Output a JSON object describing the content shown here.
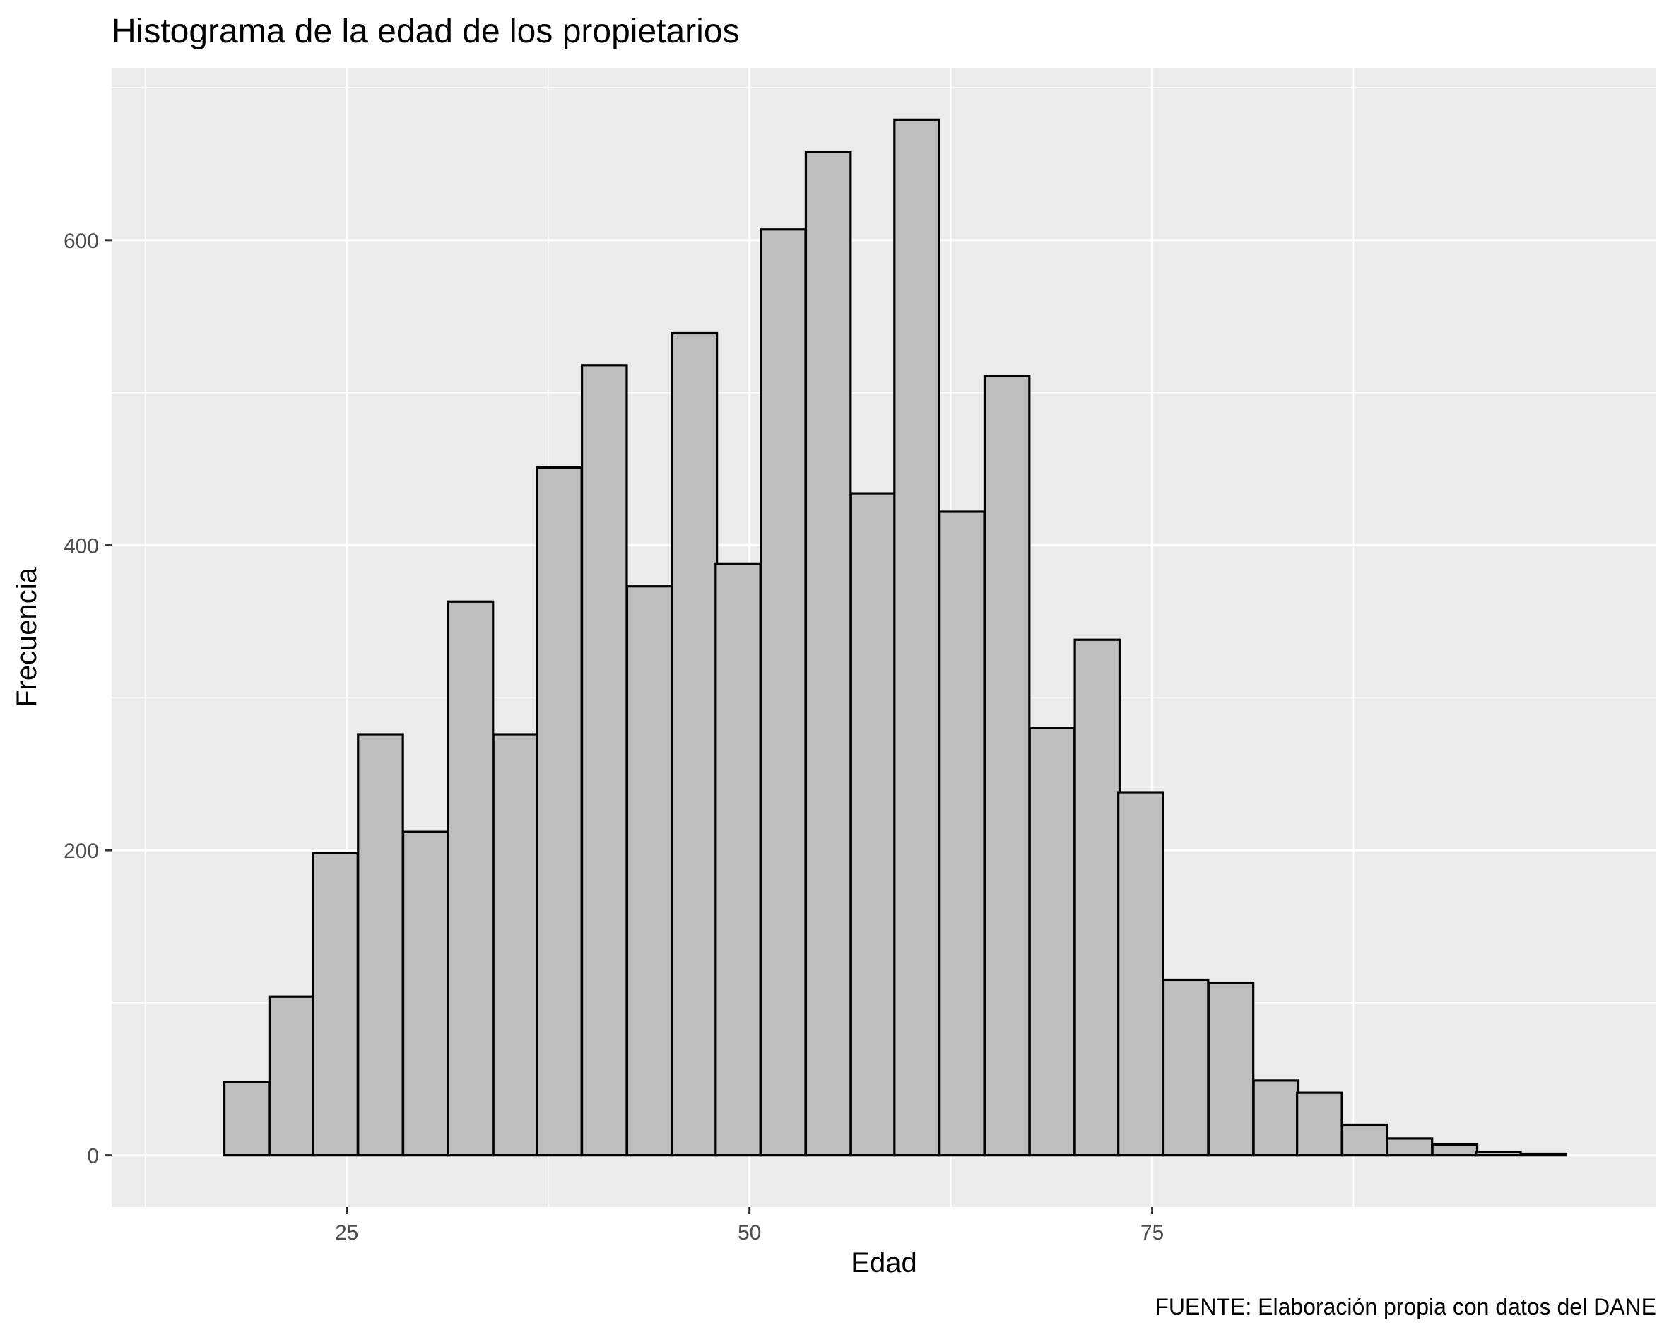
{
  "chart_data": {
    "type": "bar",
    "title": "Histograma de la edad de los propietarios",
    "xlabel": "Edad",
    "ylabel": "Frecuencia",
    "caption": "FUENTE: Elaboración propia con datos del DANE",
    "bin_width": 2.78,
    "bins": [
      {
        "x_start": 17.4,
        "count": 48
      },
      {
        "x_start": 20.2,
        "count": 104
      },
      {
        "x_start": 22.9,
        "count": 198
      },
      {
        "x_start": 25.7,
        "count": 276
      },
      {
        "x_start": 28.5,
        "count": 212
      },
      {
        "x_start": 31.3,
        "count": 363
      },
      {
        "x_start": 34.1,
        "count": 276
      },
      {
        "x_start": 36.8,
        "count": 451
      },
      {
        "x_start": 39.6,
        "count": 518
      },
      {
        "x_start": 42.4,
        "count": 373
      },
      {
        "x_start": 45.2,
        "count": 539
      },
      {
        "x_start": 47.9,
        "count": 388
      },
      {
        "x_start": 50.7,
        "count": 607
      },
      {
        "x_start": 53.5,
        "count": 658
      },
      {
        "x_start": 56.3,
        "count": 434
      },
      {
        "x_start": 59.0,
        "count": 679
      },
      {
        "x_start": 61.8,
        "count": 422
      },
      {
        "x_start": 64.6,
        "count": 511
      },
      {
        "x_start": 67.4,
        "count": 280
      },
      {
        "x_start": 70.2,
        "count": 338
      },
      {
        "x_start": 72.9,
        "count": 238
      },
      {
        "x_start": 75.7,
        "count": 115
      },
      {
        "x_start": 78.5,
        "count": 113
      },
      {
        "x_start": 81.3,
        "count": 49
      },
      {
        "x_start": 84.0,
        "count": 41
      },
      {
        "x_start": 86.8,
        "count": 20
      },
      {
        "x_start": 89.6,
        "count": 11
      },
      {
        "x_start": 92.4,
        "count": 7
      },
      {
        "x_start": 95.1,
        "count": 2
      },
      {
        "x_start": 97.9,
        "count": 1
      }
    ],
    "xlim": [
      10.4,
      106.3
    ],
    "ylim": [
      -34,
      713
    ],
    "x_ticks": [
      25,
      50,
      75
    ],
    "x_minor_ticks": [
      12.5,
      37.5,
      62.5,
      87.5
    ],
    "y_ticks": [
      0,
      200,
      400,
      600
    ],
    "y_minor_ticks": [
      100,
      300,
      500,
      700
    ],
    "x_tick_labels": [
      "25",
      "50",
      "75"
    ],
    "y_tick_labels": [
      "0",
      "200",
      "400",
      "600"
    ],
    "grid": true,
    "colors": {
      "panel_background": "#ebebeb",
      "grid": "#ffffff",
      "bar_fill": "#bebebe",
      "bar_outline": "#000000"
    }
  }
}
